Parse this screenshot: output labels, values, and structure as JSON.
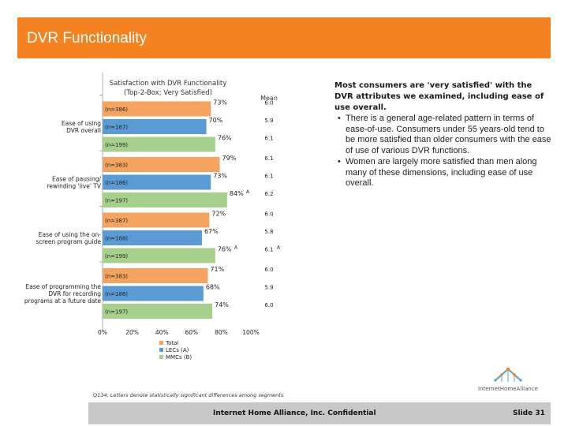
{
  "slide": {
    "title": "DVR Functionality",
    "footnote": "Q134; Letters denote statistically significant differences among segments.",
    "footer": "Internet Home Alliance, Inc. Confidential",
    "slide_number": "Slide 31",
    "logo_text": "InternetHomeAlliance"
  },
  "notes": {
    "heading": "Most consumers are 'very satisfied' with the DVR attributes we examined, including ease of use overall.",
    "bullets": [
      "There is a general age-related pattern in terms of ease-of-use. Consumers under 55 years-old tend to be more satisfied than older consumers with the ease of use of various DVR functions.",
      "Women are largely more satisfied than men along many of these dimensions, including ease of use overall."
    ]
  },
  "colors": {
    "header": "#f58220",
    "total": "#f4a460",
    "lecs": "#5b9bd5",
    "mmcs": "#a8d08d"
  },
  "chart_data": {
    "type": "bar",
    "orientation": "horizontal",
    "title": "Satisfaction with DVR Functionality",
    "subtitle": "(Top-2-Box; Very Satisfied)",
    "mean_header": "Mean",
    "xlim": [
      0,
      100
    ],
    "x_ticks": [
      "0%",
      "20%",
      "40%",
      "60%",
      "80%",
      "100%"
    ],
    "legend": [
      "Total",
      "LECs (A)",
      "MMCs (B)"
    ],
    "legend_position": "bottom",
    "groups": [
      {
        "label": [
          "Ease of using",
          "DVR overall"
        ],
        "bars": [
          {
            "series": "Total",
            "n": "(n=386)",
            "value": 73,
            "label": "73%",
            "sig": "",
            "mean": "6.0",
            "mean_sig": ""
          },
          {
            "series": "LECs (A)",
            "n": "(n=187)",
            "value": 70,
            "label": "70%",
            "sig": "",
            "mean": "5.9",
            "mean_sig": ""
          },
          {
            "series": "MMCs (B)",
            "n": "(n=199)",
            "value": 76,
            "label": "76%",
            "sig": "",
            "mean": "6.1",
            "mean_sig": ""
          }
        ]
      },
      {
        "label": [
          "Ease of pausing/",
          "rewinding 'live' TV"
        ],
        "bars": [
          {
            "series": "Total",
            "n": "(n=383)",
            "value": 79,
            "label": "79%",
            "sig": "",
            "mean": "6.1",
            "mean_sig": ""
          },
          {
            "series": "LECs (A)",
            "n": "(n=186)",
            "value": 73,
            "label": "73%",
            "sig": "",
            "mean": "6.1",
            "mean_sig": ""
          },
          {
            "series": "MMCs (B)",
            "n": "(n=197)",
            "value": 84,
            "label": "84%",
            "sig": "A",
            "mean": "6.2",
            "mean_sig": ""
          }
        ]
      },
      {
        "label": [
          "Ease of using the on-",
          "screen program guide"
        ],
        "bars": [
          {
            "series": "Total",
            "n": "(n=387)",
            "value": 72,
            "label": "72%",
            "sig": "",
            "mean": "6.0",
            "mean_sig": ""
          },
          {
            "series": "LECs (A)",
            "n": "(n=188)",
            "value": 67,
            "label": "67%",
            "sig": "",
            "mean": "5.8",
            "mean_sig": ""
          },
          {
            "series": "MMCs (B)",
            "n": "(n=199)",
            "value": 76,
            "label": "76%",
            "sig": "A",
            "mean": "6.1",
            "mean_sig": "A"
          }
        ]
      },
      {
        "label": [
          "Ease of programming the",
          "DVR for recording",
          "programs at a future date"
        ],
        "bars": [
          {
            "series": "Total",
            "n": "(n=383)",
            "value": 71,
            "label": "71%",
            "sig": "",
            "mean": "6.0",
            "mean_sig": ""
          },
          {
            "series": "LECs (A)",
            "n": "(n=186)",
            "value": 68,
            "label": "68%",
            "sig": "",
            "mean": "5.9",
            "mean_sig": ""
          },
          {
            "series": "MMCs (B)",
            "n": "(n=197)",
            "value": 74,
            "label": "74%",
            "sig": "",
            "mean": "6.0",
            "mean_sig": ""
          }
        ]
      }
    ]
  }
}
